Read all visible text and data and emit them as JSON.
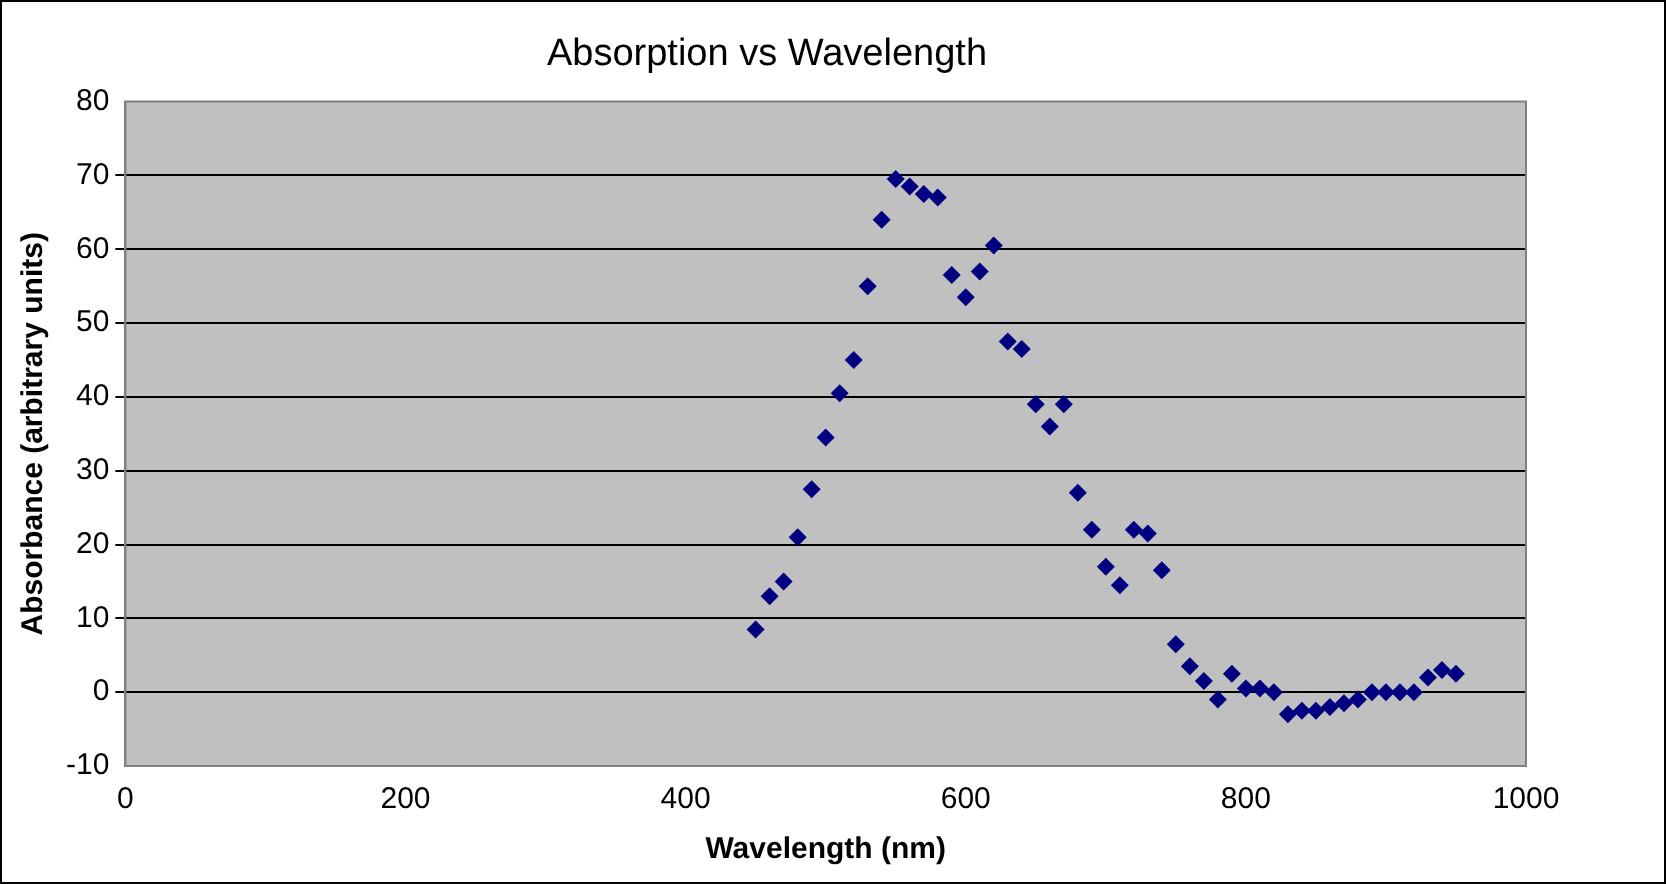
{
  "chart_data": {
    "type": "scatter",
    "title": "Absorption vs Wavelength",
    "xlabel": "Wavelength (nm)",
    "ylabel": "Absorbance (arbitrary units)",
    "x": [
      450,
      460,
      470,
      480,
      490,
      500,
      510,
      520,
      530,
      540,
      550,
      560,
      570,
      580,
      590,
      600,
      610,
      620,
      630,
      640,
      650,
      660,
      670,
      680,
      690,
      700,
      710,
      720,
      730,
      740,
      750,
      760,
      770,
      780,
      790,
      800,
      810,
      820,
      830,
      840,
      850,
      860,
      870,
      880,
      890,
      900,
      910,
      920,
      930,
      940,
      950
    ],
    "series": [
      {
        "color": "#000080",
        "values": [
          8.5,
          13,
          15,
          21,
          27.5,
          34.5,
          40.5,
          45,
          55,
          64,
          69.5,
          68.5,
          67.5,
          67,
          56.5,
          53.5,
          57,
          60.5,
          47.5,
          46.5,
          39,
          36,
          39,
          27,
          22,
          17,
          14.5,
          22,
          21.5,
          16.5,
          6.5,
          3.5,
          1.5,
          -1,
          2.5,
          0.5,
          0.5,
          0,
          -3,
          -2.5,
          -2.5,
          -2,
          -1.5,
          -1,
          0,
          0,
          0,
          0,
          2,
          3,
          2.5
        ]
      }
    ],
    "xlim": [
      0,
      1000
    ],
    "xticks": [
      0,
      200,
      400,
      600,
      800,
      1000
    ],
    "ylim": [
      -10,
      80
    ],
    "yticks": [
      -10,
      0,
      10,
      20,
      30,
      40,
      50,
      60,
      70,
      80
    ],
    "grid": "y",
    "legend": false,
    "marker": "diamond"
  }
}
